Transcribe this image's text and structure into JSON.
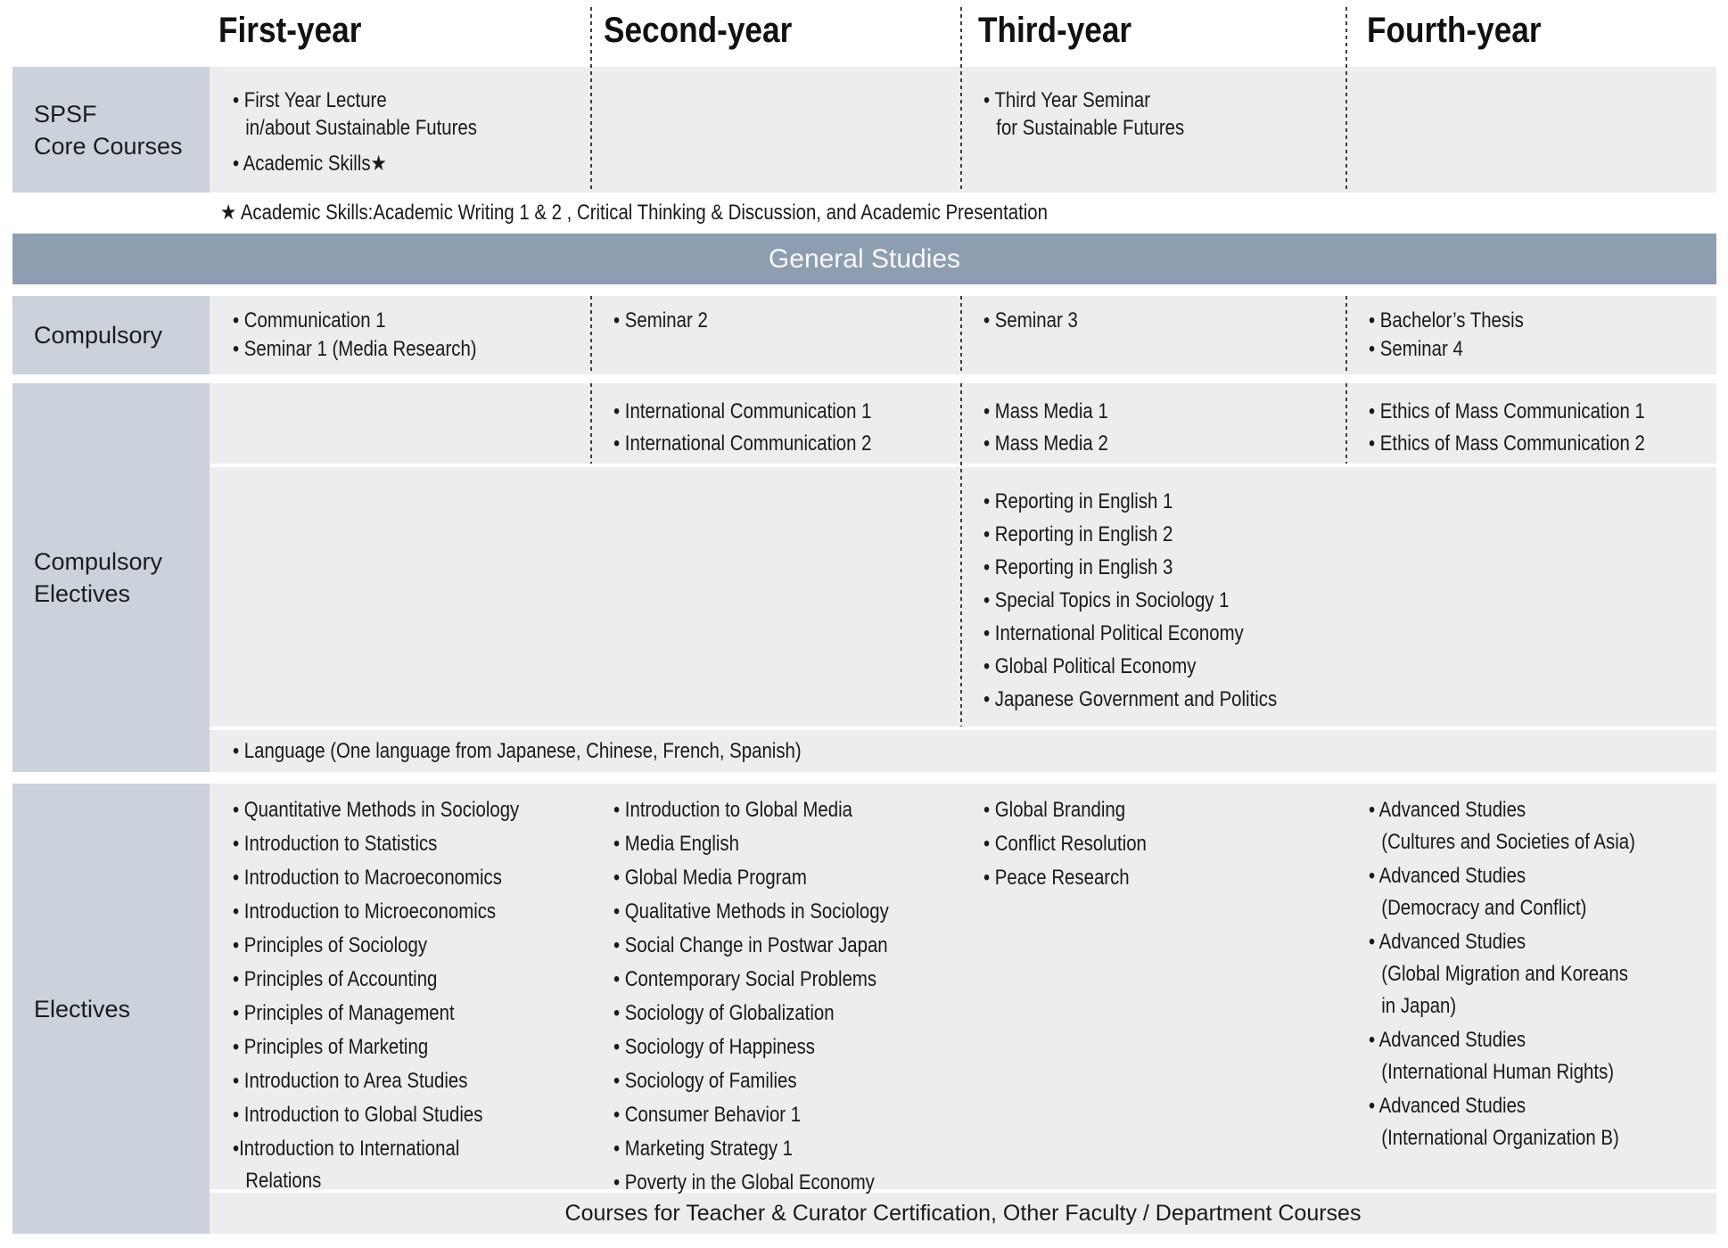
{
  "colors": {
    "banner_background": "#8E9EB1",
    "banner_text": "#F7F9FB",
    "label_cell_background": "#CBD2DC",
    "body_cell_background": "#ECEDEF",
    "text": "#1A1A1A",
    "divider": "#3F3F3F"
  },
  "header": {
    "columns": [
      "First-year",
      "Second-year",
      "Third-year",
      "Fourth-year"
    ]
  },
  "spsf": {
    "label": "SPSF\nCore Courses",
    "first_year": [
      "• First Year Lecture\nin/about Sustainable Futures",
      "• Academic Skills★"
    ],
    "second_year": [],
    "third_year": [
      "• Third Year Seminar\nfor Sustainable Futures"
    ],
    "fourth_year": []
  },
  "footnote": "★ Academic Skills:Academic Writing 1 & 2 , Critical Thinking & Discussion, and Academic Presentation",
  "general_studies_banner": "General Studies",
  "compulsory": {
    "label": "Compulsory",
    "first_year": [
      "• Communication 1",
      "• Seminar 1 (Media Research)"
    ],
    "second_year": [
      "• Seminar 2"
    ],
    "third_year": [
      "• Seminar 3"
    ],
    "fourth_year": [
      "• Bachelor’s Thesis",
      "• Seminar 4"
    ]
  },
  "compulsory_electives": {
    "label": "Compulsory\nElectives",
    "upper": {
      "first_year": [],
      "second_year": [
        "• International Communication 1",
        "• International Communication 2"
      ],
      "third_year": [
        "• Mass Media 1",
        "• Mass Media 2"
      ],
      "fourth_year": [
        "• Ethics of Mass Communication 1",
        "• Ethics of Mass Communication 2"
      ]
    },
    "middle": {
      "third_year": [
        "• Reporting in English 1",
        "• Reporting in English 2",
        "• Reporting in English 3",
        "• Special Topics in Sociology 1",
        "• International Political Economy",
        "• Global Political Economy",
        "• Japanese Government and Politics"
      ]
    },
    "language_row": "• Language (One language from Japanese, Chinese, French, Spanish)"
  },
  "electives": {
    "label": "Electives",
    "first_year": [
      "• Quantitative Methods in Sociology",
      "• Introduction to Statistics",
      "• Introduction to Macroeconomics",
      "• Introduction to Microeconomics",
      "• Principles of Sociology",
      "• Principles of Accounting",
      "• Principles of Management",
      "• Principles of Marketing",
      "• Introduction to Area Studies",
      "• Introduction to Global Studies",
      "•Introduction to International Relations"
    ],
    "second_year": [
      "• Introduction to Global Media",
      "• Media English",
      "• Global Media Program",
      "• Qualitative Methods in Sociology",
      "• Social Change in Postwar Japan",
      "• Contemporary Social Problems",
      "• Sociology of Globalization",
      "• Sociology of Happiness",
      "• Sociology of Families",
      "• Consumer Behavior 1",
      "• Marketing Strategy 1",
      "• Poverty in the Global Economy"
    ],
    "third_year": [
      "• Global Branding",
      "• Conflict Resolution",
      "• Peace Research"
    ],
    "fourth_year": [
      "• Advanced Studies\n(Cultures and Societies of Asia)",
      "• Advanced Studies\n(Democracy and Conflict)",
      "• Advanced Studies\n(Global Migration and Koreans\nin Japan)",
      "• Advanced Studies\n(International Human Rights)",
      "• Advanced Studies\n(International Organization B)"
    ],
    "footer": "Courses for Teacher & Curator Certification, Other Faculty / Department Courses"
  }
}
